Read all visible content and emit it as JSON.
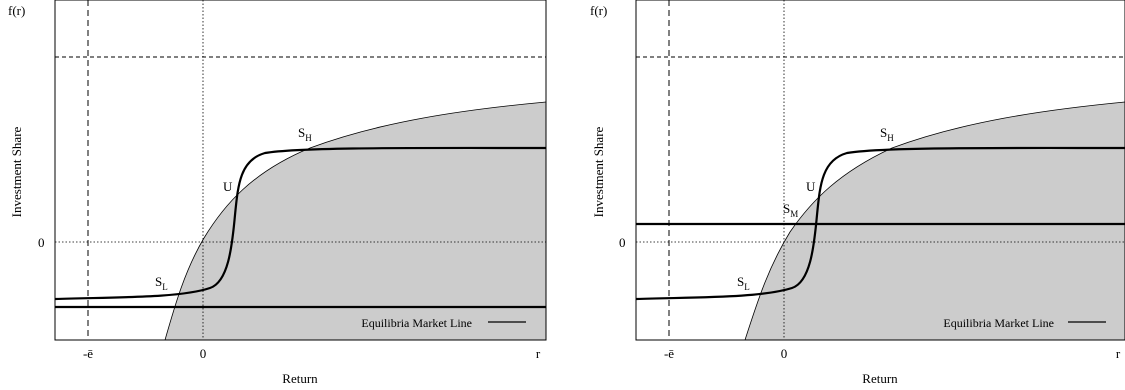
{
  "panels": [
    {
      "y_top_label": "f(r)",
      "y_axis_label": "Investment Share",
      "x_axis_label": "Return",
      "x_ticks": {
        "ebar": "-ē",
        "zero": "0",
        "r": "r"
      },
      "y_ticks": {
        "zero": "0"
      },
      "points": {
        "SL": [
          "S",
          "L"
        ],
        "U": [
          "U",
          ""
        ],
        "SH": [
          "S",
          "H"
        ]
      },
      "legend_label": "Equilibria Market Line"
    },
    {
      "y_top_label": "f(r)",
      "y_axis_label": "Investment Share",
      "x_axis_label": "Return",
      "x_ticks": {
        "ebar": "-ē",
        "zero": "0",
        "r": "r"
      },
      "y_ticks": {
        "zero": "0"
      },
      "points": {
        "SL": [
          "S",
          "L"
        ],
        "SM": [
          "S",
          "M"
        ],
        "U": [
          "U",
          ""
        ],
        "SH": [
          "S",
          "H"
        ]
      },
      "legend_label": "Equilibria Market Line"
    }
  ],
  "colors": {
    "shade": "#cccccc",
    "line": "#000000"
  }
}
